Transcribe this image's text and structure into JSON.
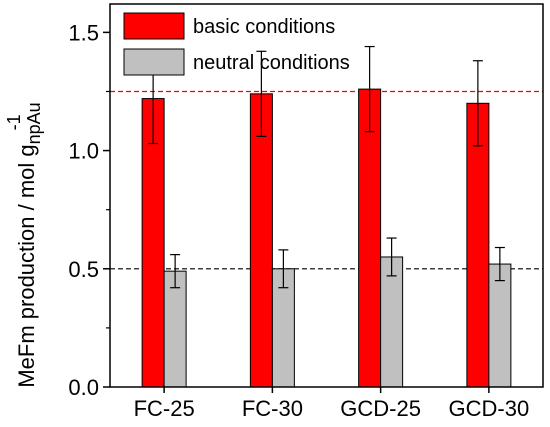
{
  "chart_data": {
    "type": "bar",
    "categories": [
      "FC-25",
      "FC-30",
      "GCD-25",
      "GCD-30"
    ],
    "series": [
      {
        "name": "basic conditions",
        "color": "#ff0000",
        "values": [
          1.22,
          1.24,
          1.26,
          1.2
        ],
        "errors": [
          0.19,
          0.18,
          0.18,
          0.18
        ]
      },
      {
        "name": "neutral conditions",
        "color": "#c0c0c0",
        "values": [
          0.49,
          0.5,
          0.55,
          0.52
        ],
        "errors": [
          0.07,
          0.08,
          0.08,
          0.07
        ]
      }
    ],
    "ylabel": {
      "main": "MeFm production / mol g",
      "subscript": "npAu",
      "superscript": "-1"
    },
    "ylim": [
      0,
      1.62
    ],
    "yticks": [
      "0.0",
      "0.5",
      "1.0",
      "1.5"
    ],
    "reference_lines": [
      {
        "value": 1.25,
        "color": "#ff0000"
      },
      {
        "value": 0.5,
        "color": "#000000"
      }
    ],
    "grid": false,
    "legend_position": "top-left"
  }
}
